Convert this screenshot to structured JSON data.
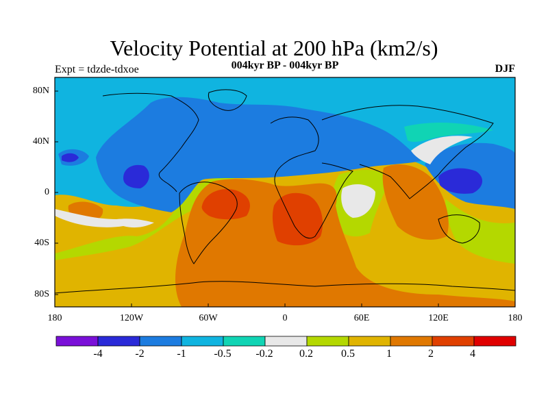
{
  "title": "Velocity Potential at 200 hPa (km2/s)",
  "subtitle": "004kyr BP - 004kyr BP",
  "left_label": "Expt = tdzde-tdxoe",
  "right_label": "DJF",
  "lat_labels": [
    "80N",
    "40N",
    "0",
    "40S",
    "80S"
  ],
  "lon_labels": [
    "180",
    "120W",
    "60W",
    "0",
    "60E",
    "120E",
    "180"
  ],
  "colorbar": {
    "colors": [
      "#7a10d8",
      "#2a2ad8",
      "#1c7ce0",
      "#10b4e0",
      "#10d4b4",
      "#e8e8e8",
      "#b4d800",
      "#e0b400",
      "#e07800",
      "#e04000",
      "#e00000"
    ],
    "labels": [
      "-4",
      "-2",
      "-1",
      "-0.5",
      "-0.2",
      "0.2",
      "0.5",
      "1",
      "2",
      "4"
    ]
  }
}
